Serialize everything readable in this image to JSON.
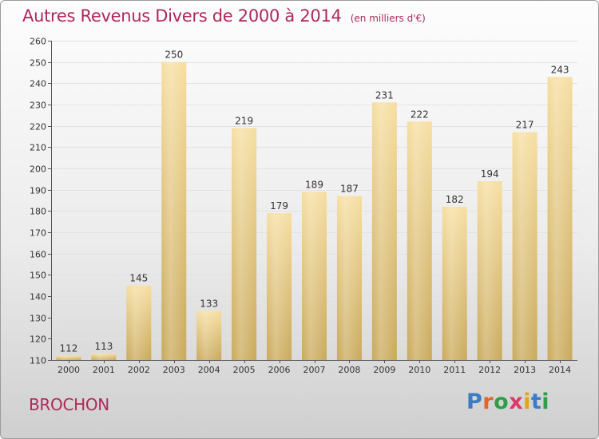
{
  "title": "Autres Revenus Divers de 2000 à 2014",
  "subtitle": "(en milliers d'€)",
  "location": "BROCHON",
  "logo": {
    "text": "Proxiti",
    "letter_colors": [
      "#3a7dc4",
      "#e0662a",
      "#2e9e48",
      "#d93a6a",
      "#e6a21c",
      "#3a7dc4",
      "#2e9e48"
    ]
  },
  "colors": {
    "accent": "#b0285a",
    "bar_light": "#f6dea0",
    "bar_dark": "#c9a95b"
  },
  "chart_data": {
    "type": "bar",
    "title": "Autres Revenus Divers de 2000 à 2014",
    "subtitle": "(en milliers d'€)",
    "xlabel": "",
    "ylabel": "",
    "categories": [
      "2000",
      "2001",
      "2002",
      "2003",
      "2004",
      "2005",
      "2006",
      "2007",
      "2008",
      "2009",
      "2010",
      "2011",
      "2012",
      "2013",
      "2014"
    ],
    "values": [
      112,
      113,
      145,
      250,
      133,
      219,
      179,
      189,
      187,
      231,
      222,
      182,
      194,
      217,
      243
    ],
    "ylim": [
      110,
      260
    ],
    "yticks": [
      110,
      120,
      130,
      140,
      150,
      160,
      170,
      180,
      190,
      200,
      210,
      220,
      230,
      240,
      250,
      260
    ],
    "grid": true,
    "data_labels": true,
    "legend": "none"
  }
}
